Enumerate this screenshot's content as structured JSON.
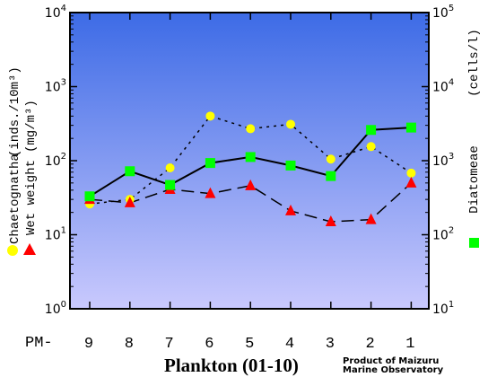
{
  "chart_data": {
    "type": "line",
    "title": "Plankton (01-10)",
    "credit": [
      "Product of Maizuru",
      "Marine Observatory"
    ],
    "x_prefix": "PM-",
    "categories": [
      "9",
      "8",
      "7",
      "6",
      "5",
      "4",
      "3",
      "2",
      "1"
    ],
    "left_axis": {
      "scale": "log",
      "range": [
        1,
        10000
      ],
      "ticks": [
        {
          "base": "10",
          "exp": "0"
        },
        {
          "base": "10",
          "exp": "1"
        },
        {
          "base": "10",
          "exp": "2"
        },
        {
          "base": "10",
          "exp": "3"
        },
        {
          "base": "10",
          "exp": "4"
        }
      ],
      "unit_labels": [
        "(inds./10m³)",
        "(mg/m³)"
      ],
      "series_labels": [
        "Chaetognatha",
        "Wet weight"
      ]
    },
    "right_axis": {
      "scale": "log",
      "range": [
        10,
        100000
      ],
      "ticks": [
        {
          "base": "10",
          "exp": "1"
        },
        {
          "base": "10",
          "exp": "2"
        },
        {
          "base": "10",
          "exp": "3"
        },
        {
          "base": "10",
          "exp": "4"
        },
        {
          "base": "10",
          "exp": "5"
        }
      ],
      "unit_label": "(cells/l)",
      "series_label": "Diatomeae"
    },
    "series": [
      {
        "name": "Chaetognatha",
        "axis": "left",
        "marker": "circle",
        "line": "dotted",
        "color": "#ffff00",
        "values": [
          26,
          30,
          80,
          400,
          270,
          310,
          105,
          155,
          68
        ]
      },
      {
        "name": "Wet weight",
        "axis": "left",
        "marker": "triangle",
        "line": "dashed",
        "color": "#ff0000",
        "values": [
          30,
          27,
          41,
          36,
          46,
          21,
          15,
          16,
          50
        ]
      },
      {
        "name": "Diatomeae",
        "axis": "right",
        "marker": "square",
        "line": "solid",
        "color": "#00ff00",
        "values": [
          330,
          720,
          470,
          930,
          1120,
          860,
          620,
          2600,
          2800
        ]
      }
    ],
    "plot_gradient": [
      "#3d6be6",
      "#c9c9fd"
    ]
  }
}
